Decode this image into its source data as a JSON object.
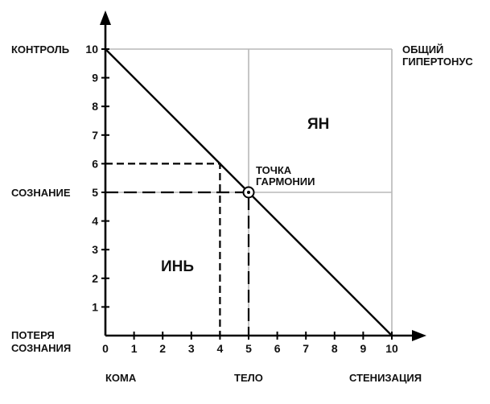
{
  "left_labels": {
    "control": "КОНТРОЛЬ",
    "consciousness": "СОЗНАНИЕ",
    "loss_line1": "ПОТЕРЯ",
    "loss_line2": "СОЗНАНИЯ"
  },
  "right_labels": {
    "hypertonus_line1": "ОБЩИЙ",
    "hypertonus_line2": "ГИПЕРТОНУС"
  },
  "bottom_labels": {
    "coma": "КОМА",
    "body": "ТЕЛО",
    "stenization": "СТЕНИЗАЦИЯ"
  },
  "regions": {
    "yang": "ЯН",
    "yin": "ИНЬ"
  },
  "harmony_point": {
    "line1": "ТОЧКА",
    "line2": "ГАРМОНИИ",
    "x": 5,
    "y": 5
  },
  "chart_data": {
    "type": "line",
    "x_ticks": [
      "0",
      "1",
      "2",
      "3",
      "4",
      "5",
      "6",
      "7",
      "8",
      "9",
      "10"
    ],
    "y_ticks": [
      "1",
      "2",
      "3",
      "4",
      "5",
      "6",
      "7",
      "8",
      "9",
      "10"
    ],
    "xlim": [
      0,
      10
    ],
    "ylim": [
      0,
      10
    ],
    "diagonal": {
      "x": [
        0,
        10
      ],
      "y": [
        10,
        0
      ]
    },
    "dashed_guides": [
      {
        "x": [
          0,
          4,
          4
        ],
        "y": [
          6,
          6,
          0
        ]
      },
      {
        "x": [
          0,
          5,
          5
        ],
        "y": [
          5,
          5,
          0
        ]
      }
    ],
    "grid_lines": {
      "x": [
        5,
        10
      ],
      "y": [
        5,
        10
      ]
    }
  }
}
